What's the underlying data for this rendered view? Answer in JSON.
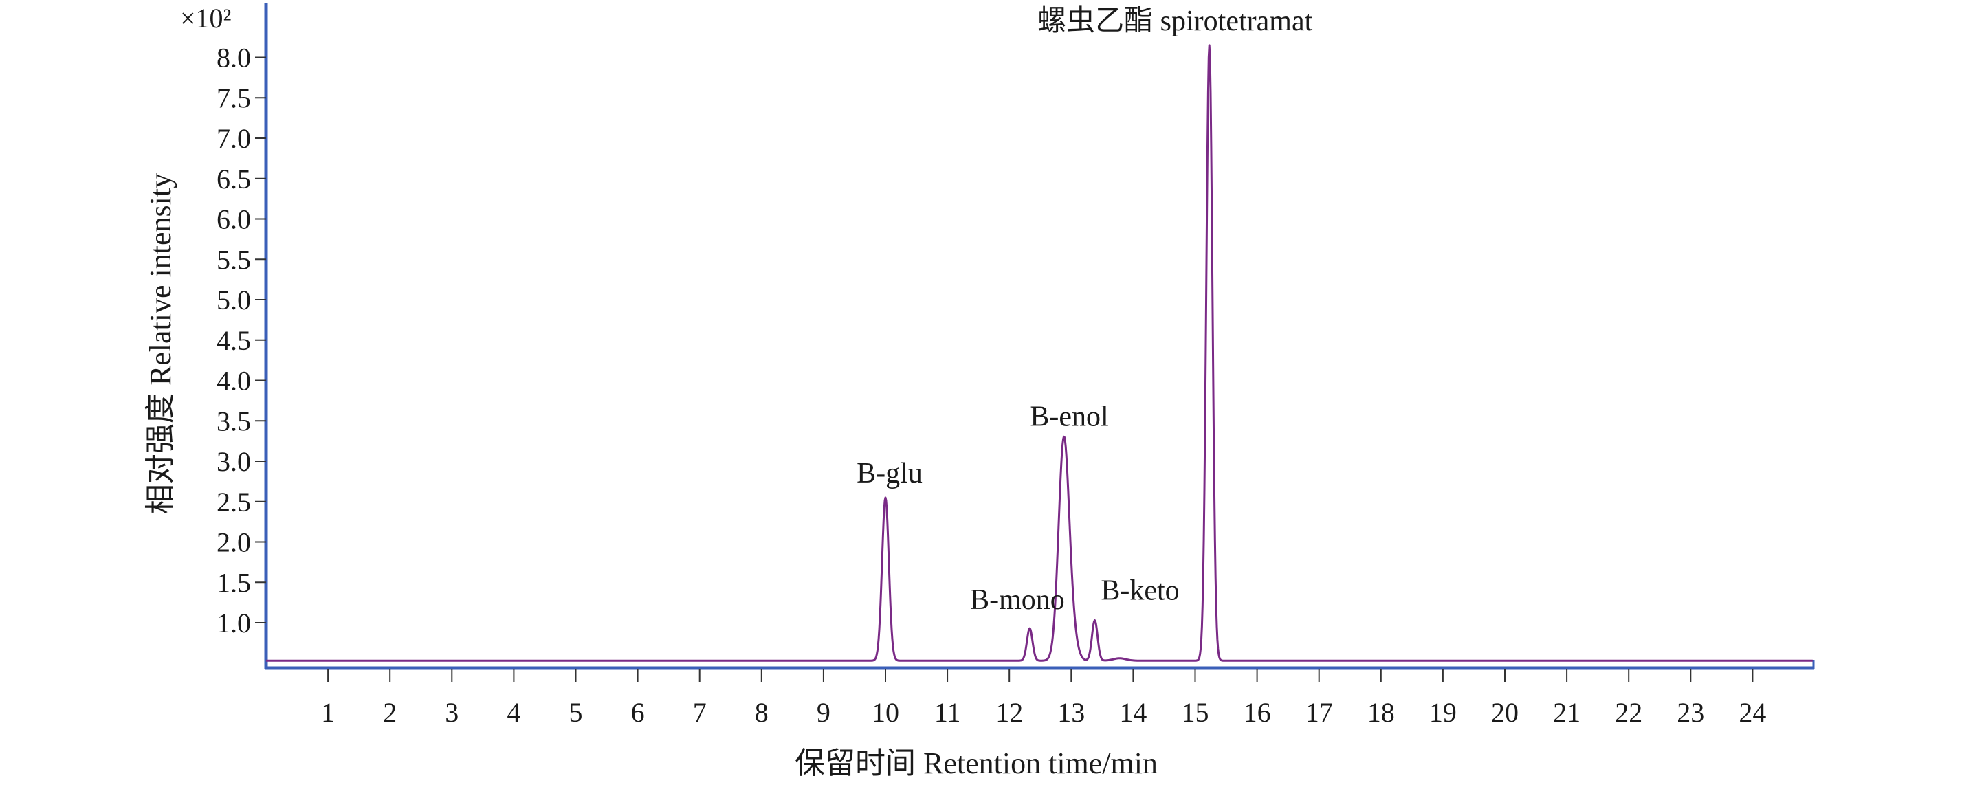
{
  "chart_data": {
    "type": "line",
    "title": "",
    "xlabel": "保留时间 Retention time/min",
    "ylabel": "相对强度 Relative intensity",
    "y_multiplier": "×10²",
    "xlim": [
      0,
      25
    ],
    "ylim": [
      0.5,
      8.6
    ],
    "baseline": 0.53,
    "x_ticks": [
      1,
      2,
      3,
      4,
      5,
      6,
      7,
      8,
      9,
      10,
      11,
      12,
      13,
      14,
      15,
      16,
      17,
      18,
      19,
      20,
      21,
      22,
      23,
      24
    ],
    "y_ticks": [
      "1.0",
      "1.5",
      "2.0",
      "2.5",
      "3.0",
      "3.5",
      "4.0",
      "4.5",
      "5.0",
      "5.5",
      "6.0",
      "6.5",
      "7.0",
      "7.5",
      "8.0"
    ],
    "grid": false,
    "legend": "none",
    "line_color": "#7a2a86",
    "axis_color": "#3b5fb8",
    "peaks": [
      {
        "label": "B-glu",
        "x": 10.0,
        "y": 2.55
      },
      {
        "label": "B-mono",
        "x": 12.33,
        "y": 0.93
      },
      {
        "label": "B-enol",
        "x": 12.88,
        "y": 3.25
      },
      {
        "label": "B-keto",
        "x": 13.38,
        "y": 1.03
      },
      {
        "label": "螺虫乙酯 spirotetramat",
        "x": 15.23,
        "y": 8.15
      }
    ]
  }
}
